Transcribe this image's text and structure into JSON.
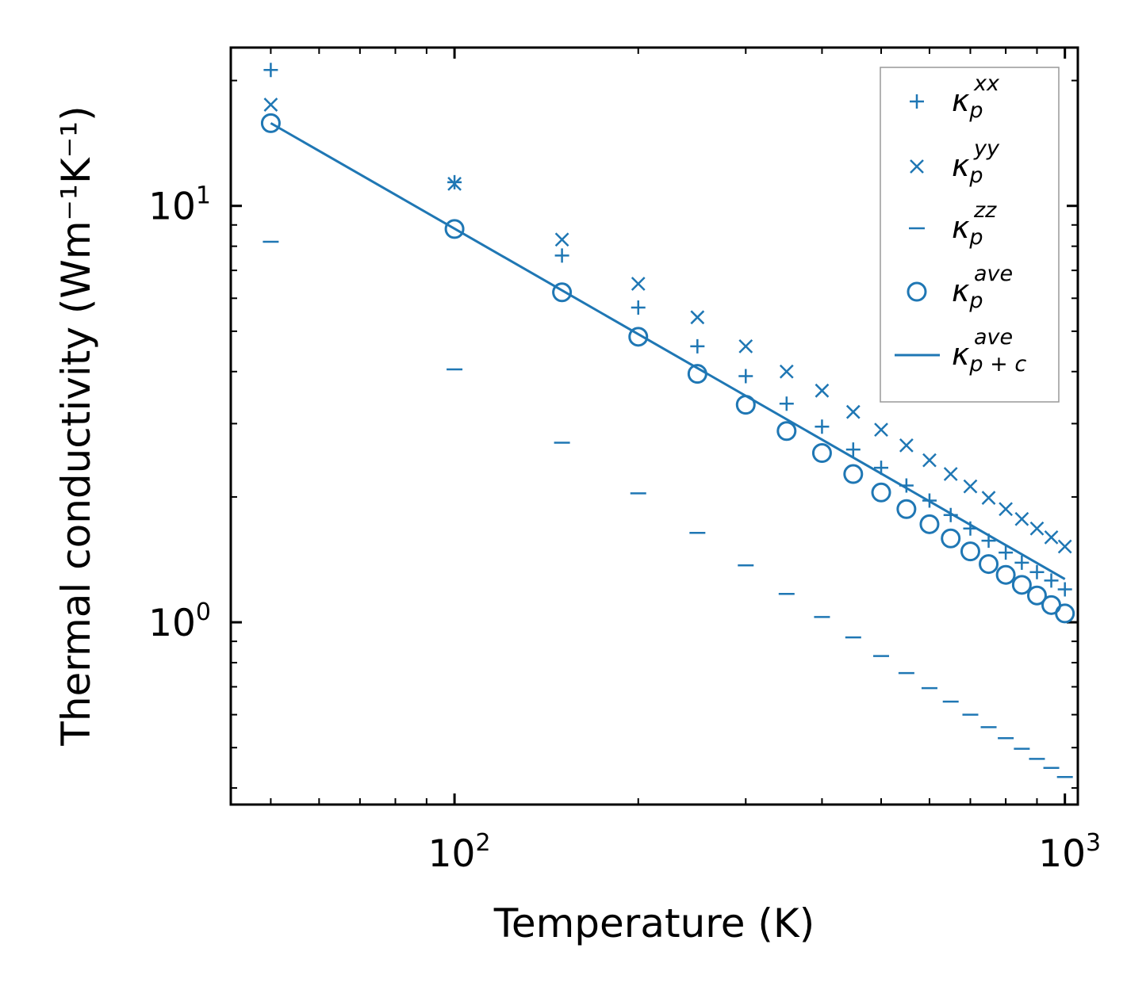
{
  "chart_data": {
    "type": "scatter",
    "xscale": "log",
    "yscale": "log",
    "xlabel": "Temperature (K)",
    "ylabel": "Thermal conductivity (Wm⁻¹K⁻¹)",
    "xlim": [
      43,
      1050
    ],
    "ylim": [
      0.365,
      24
    ],
    "xticks": [
      {
        "base": "10",
        "exp": "2",
        "value": 100
      },
      {
        "base": "10",
        "exp": "3",
        "value": 1000
      }
    ],
    "yticks": [
      {
        "base": "10",
        "exp": "0",
        "value": 1
      },
      {
        "base": "10",
        "exp": "1",
        "value": 10
      }
    ],
    "color": "#1f77b4",
    "series": [
      {
        "name": "κ_p^xx",
        "symbol": "κ",
        "sub": "p",
        "sup": "xx",
        "marker": "plus",
        "x": [
          50,
          100,
          150,
          200,
          250,
          300,
          350,
          400,
          450,
          500,
          550,
          600,
          650,
          700,
          750,
          800,
          850,
          900,
          950,
          1000
        ],
        "y": [
          21.2,
          11.4,
          7.6,
          5.7,
          4.6,
          3.9,
          3.35,
          2.95,
          2.6,
          2.35,
          2.13,
          1.96,
          1.81,
          1.68,
          1.57,
          1.47,
          1.39,
          1.32,
          1.26,
          1.2
        ]
      },
      {
        "name": "κ_p^yy",
        "symbol": "κ",
        "sub": "p",
        "sup": "yy",
        "marker": "x",
        "x": [
          50,
          100,
          150,
          200,
          250,
          300,
          350,
          400,
          450,
          500,
          550,
          600,
          650,
          700,
          750,
          800,
          850,
          900,
          950,
          1000
        ],
        "y": [
          17.5,
          11.3,
          8.3,
          6.5,
          5.4,
          4.6,
          4.0,
          3.6,
          3.2,
          2.9,
          2.66,
          2.45,
          2.27,
          2.12,
          1.99,
          1.87,
          1.77,
          1.68,
          1.6,
          1.52
        ]
      },
      {
        "name": "κ_p^zz",
        "symbol": "κ",
        "sub": "p",
        "sup": "zz",
        "marker": "hline",
        "x": [
          50,
          100,
          150,
          200,
          250,
          300,
          350,
          400,
          450,
          500,
          550,
          600,
          650,
          700,
          750,
          800,
          850,
          900,
          950,
          1000
        ],
        "y": [
          8.2,
          4.05,
          2.7,
          2.04,
          1.64,
          1.37,
          1.17,
          1.03,
          0.92,
          0.83,
          0.755,
          0.695,
          0.645,
          0.6,
          0.56,
          0.527,
          0.497,
          0.47,
          0.447,
          0.425
        ]
      },
      {
        "name": "κ_p^ave",
        "symbol": "κ",
        "sub": "p",
        "sup": "ave",
        "marker": "circle",
        "x": [
          50,
          100,
          150,
          200,
          250,
          300,
          350,
          400,
          450,
          500,
          550,
          600,
          650,
          700,
          750,
          800,
          850,
          900,
          950,
          1000
        ],
        "y": [
          15.8,
          8.8,
          6.2,
          4.85,
          3.95,
          3.33,
          2.88,
          2.55,
          2.27,
          2.05,
          1.87,
          1.72,
          1.59,
          1.48,
          1.38,
          1.3,
          1.23,
          1.16,
          1.1,
          1.05
        ]
      },
      {
        "name": "κ_p+c^ave",
        "symbol": "κ",
        "sub": "p + c",
        "sup": "ave",
        "marker": "line",
        "x": [
          50,
          1000
        ],
        "y": [
          15.8,
          1.27
        ]
      }
    ],
    "legend": "top-right"
  }
}
